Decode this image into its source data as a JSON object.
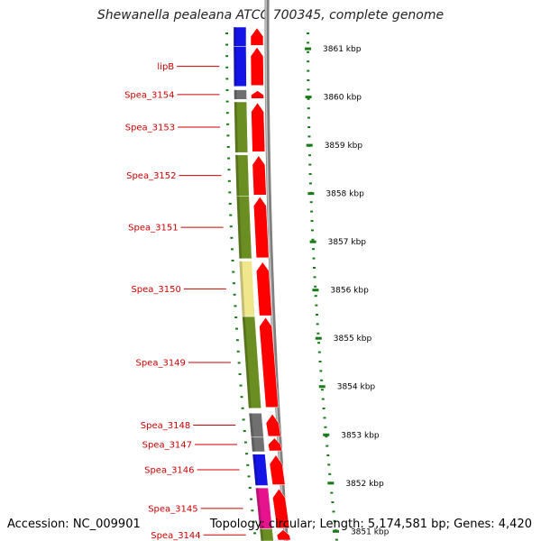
{
  "title": "Shewanella pealeana ATCC 700345, complete genome",
  "footer": {
    "accession": "Accession: NC_009901",
    "summary": "Topology: circular; Length: 5,174,581 bp; Genes: 4,420"
  },
  "map_data": {
    "position_range_kbp": [
      3850.8,
      3861.45
    ],
    "ticks_kbp": [
      3861,
      3860,
      3859,
      3858,
      3857,
      3856,
      3855,
      3854,
      3853,
      3852,
      3851
    ],
    "tick_suffix": " kbp",
    "colors": {
      "label": "#cc0000",
      "arrow": "#ff0000",
      "tick": "#1a7a1a",
      "backbone": "#808080"
    },
    "genes": [
      {
        "label": "",
        "start_kbp": 3861.05,
        "end_kbp": 3861.45,
        "color": "#1414e6",
        "strand": "+"
      },
      {
        "label": "lipB",
        "start_kbp": 3860.22,
        "end_kbp": 3861.05,
        "color": "#1414e6",
        "strand": "+"
      },
      {
        "label": "Spea_3154",
        "start_kbp": 3859.95,
        "end_kbp": 3860.15,
        "color": "#707070",
        "strand": "+"
      },
      {
        "label": "Spea_3153",
        "start_kbp": 3858.85,
        "end_kbp": 3859.9,
        "color": "#6b8e23",
        "strand": "+"
      },
      {
        "label": "Spea_3152",
        "start_kbp": 3857.95,
        "end_kbp": 3858.8,
        "color": "#6b8e23",
        "strand": "+"
      },
      {
        "label": "Spea_3151",
        "start_kbp": 3856.65,
        "end_kbp": 3857.95,
        "color": "#6b8e23",
        "strand": "+"
      },
      {
        "label": "Spea_3150",
        "start_kbp": 3855.45,
        "end_kbp": 3856.6,
        "color": "#f0e68c",
        "strand": "+"
      },
      {
        "label": "Spea_3149",
        "start_kbp": 3853.55,
        "end_kbp": 3855.45,
        "color": "#6b8e23",
        "strand": "+"
      },
      {
        "label": "Spea_3148",
        "start_kbp": 3852.95,
        "end_kbp": 3853.45,
        "color": "#707070",
        "strand": "+"
      },
      {
        "label": "Spea_3147",
        "start_kbp": 3852.65,
        "end_kbp": 3852.95,
        "color": "#707070",
        "strand": "+"
      },
      {
        "label": "Spea_3146",
        "start_kbp": 3851.95,
        "end_kbp": 3852.6,
        "color": "#1414e6",
        "strand": "+"
      },
      {
        "label": "Spea_3145",
        "start_kbp": 3851.05,
        "end_kbp": 3851.9,
        "color": "#e6148c",
        "strand": "+"
      },
      {
        "label": "Spea_3144",
        "start_kbp": 3850.8,
        "end_kbp": 3851.05,
        "color": "#6b8e23",
        "strand": "+"
      }
    ]
  }
}
